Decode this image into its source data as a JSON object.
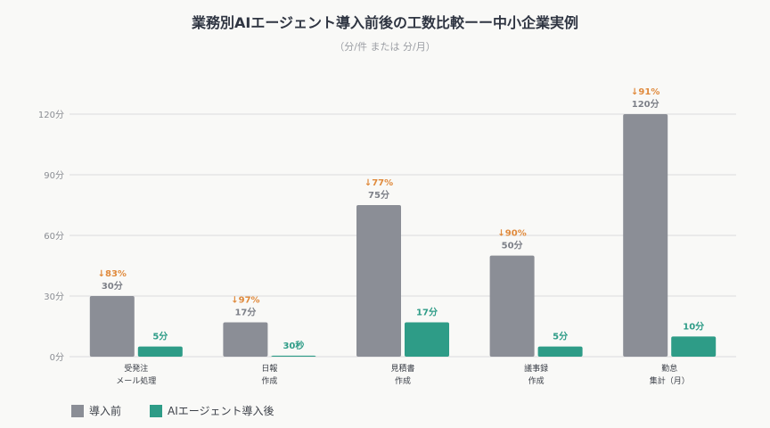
{
  "title": "業務別AIエージェント導入前後の工数比較ーー中小企業実例",
  "subtitle": "（分/件 または 分/月）",
  "colors": {
    "before": "#8b8e96",
    "after": "#2e9c87",
    "reduction": "#e08a3c",
    "grid": "#dcdcdc",
    "axis_text": "#8a8d93"
  },
  "chart_data": {
    "type": "bar",
    "categories": [
      [
        "受発注",
        "メール処理"
      ],
      [
        "日報",
        "作成"
      ],
      [
        "見積書",
        "作成"
      ],
      [
        "議事録",
        "作成"
      ],
      [
        "勤怠",
        "集計（月）"
      ]
    ],
    "series": [
      {
        "name": "導入前",
        "values": [
          30,
          17,
          75,
          50,
          120
        ],
        "labels": [
          "30分",
          "17分",
          "75分",
          "50分",
          "120分"
        ]
      },
      {
        "name": "AIエージェント導入後",
        "values": [
          5,
          0.5,
          17,
          5,
          10
        ],
        "labels": [
          "5分",
          "30秒",
          "17分",
          "5分",
          "10分"
        ]
      }
    ],
    "reductions": [
      "↓83%",
      "↓97%",
      "↓77%",
      "↓90%",
      "↓91%"
    ],
    "yticks": [
      0,
      30,
      60,
      90,
      120
    ],
    "ytick_labels": [
      "0分",
      "30分",
      "60分",
      "90分",
      "120分"
    ],
    "ylim": [
      0,
      120
    ],
    "grid": true,
    "legend_position": "bottom-left"
  }
}
